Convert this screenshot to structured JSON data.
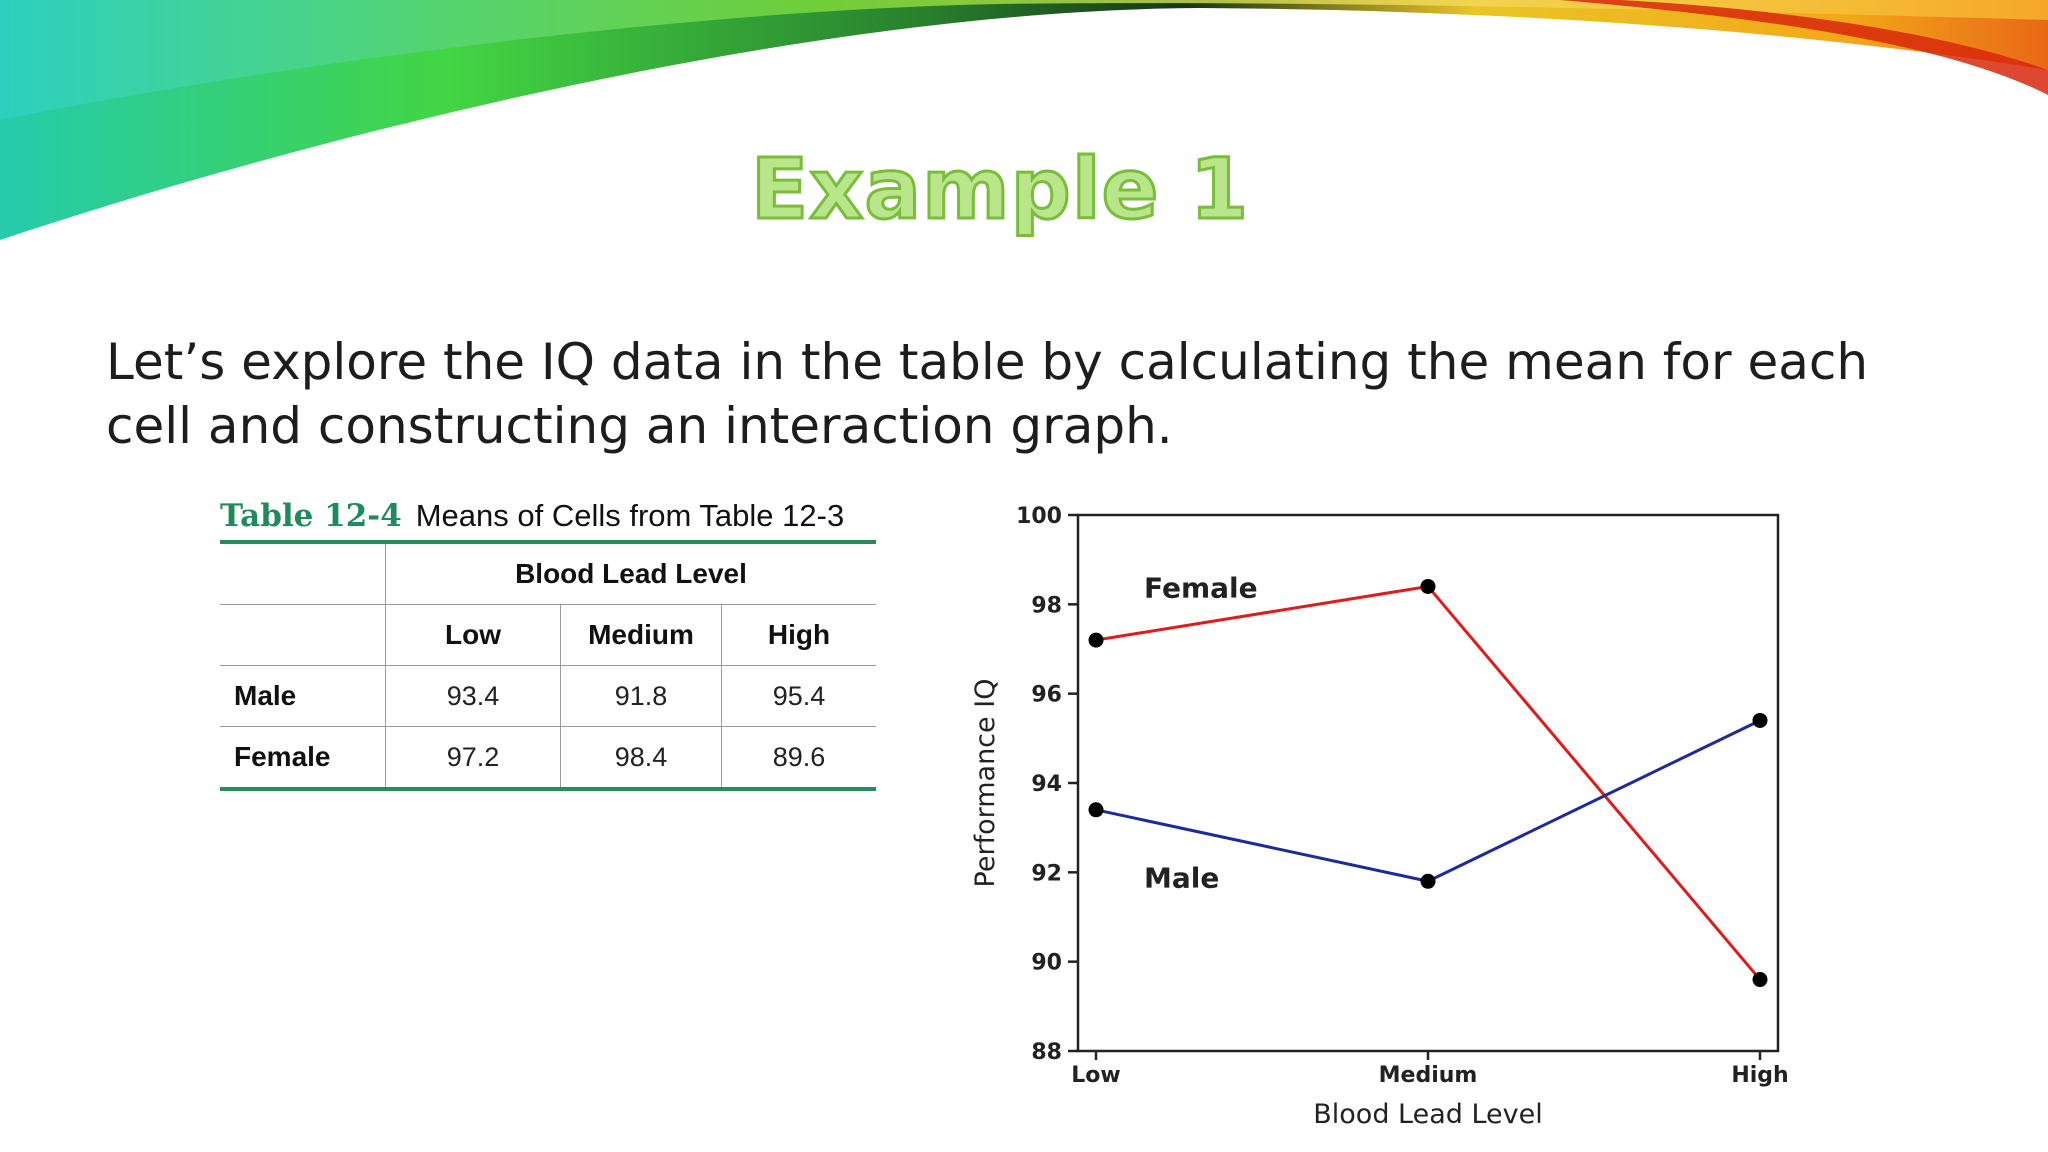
{
  "slide": {
    "title": "Example 1",
    "body": "Let’s explore the IQ data in the table by calculating the mean for each cell and constructing an interaction graph."
  },
  "table": {
    "number": "Table 12-4",
    "caption": "Means of Cells from Table 12-3",
    "group_header": "Blood Lead Level",
    "columns": [
      "Low",
      "Medium",
      "High"
    ],
    "rows": [
      {
        "label": "Male",
        "values": [
          "93.4",
          "91.8",
          "95.4"
        ]
      },
      {
        "label": "Female",
        "values": [
          "97.2",
          "98.4",
          "89.6"
        ]
      }
    ],
    "accent_color": "#2b8a5c"
  },
  "chart_data": {
    "type": "line",
    "categories": [
      "Low",
      "Medium",
      "High"
    ],
    "series": [
      {
        "name": "Female",
        "values": [
          97.2,
          98.4,
          89.6
        ],
        "color": "#e01b1b"
      },
      {
        "name": "Male",
        "values": [
          93.4,
          91.8,
          95.4
        ],
        "color": "#1f2a9a"
      }
    ],
    "xlabel": "Blood Lead Level",
    "ylabel": "Performance IQ",
    "ylim": [
      88,
      100
    ],
    "yticks": [
      "88",
      "90",
      "92",
      "94",
      "96",
      "98",
      "100"
    ],
    "grid": false,
    "legend": "inline labels"
  }
}
